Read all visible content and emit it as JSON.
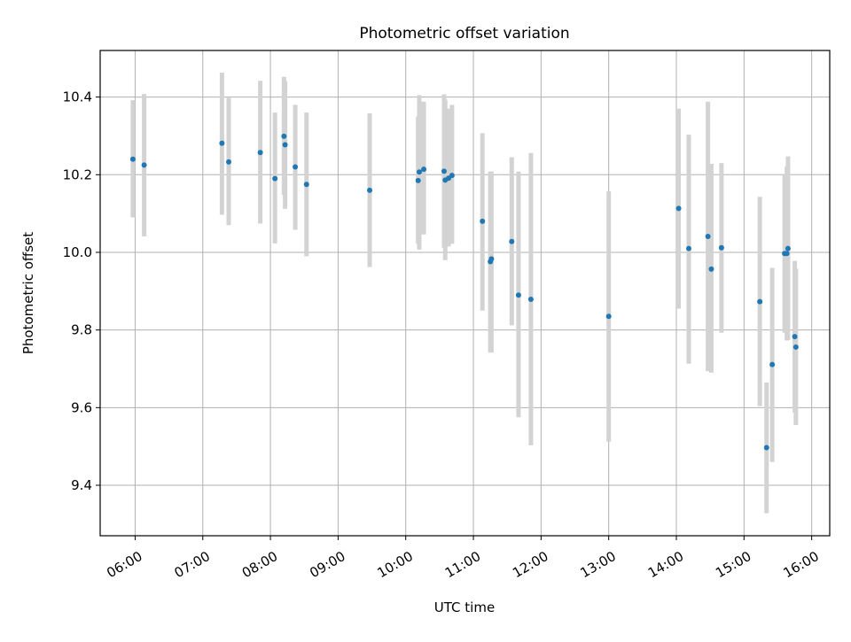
{
  "chart_data": {
    "type": "scatter",
    "title": "Photometric offset variation",
    "xlabel": "UTC time",
    "ylabel": "Photometric offset",
    "xlim": [
      "05:29",
      "16:16"
    ],
    "ylim": [
      9.27,
      10.52
    ],
    "xticks": [
      "06:00",
      "07:00",
      "08:00",
      "09:00",
      "10:00",
      "11:00",
      "12:00",
      "13:00",
      "14:00",
      "15:00",
      "16:00"
    ],
    "yticks": [
      9.4,
      9.6,
      9.8,
      10.0,
      10.2,
      10.4
    ],
    "ytick_labels": [
      "9.4",
      "9.6",
      "9.8",
      "10.0",
      "10.2",
      "10.4"
    ],
    "grid": true,
    "marker_color": "#1f77b4",
    "errorbar_color": "#d3d3d3",
    "points": [
      {
        "x": "05:58",
        "y": 10.24,
        "low": 10.09,
        "high": 10.392
      },
      {
        "x": "06:08",
        "y": 10.225,
        "low": 10.041,
        "high": 10.408
      },
      {
        "x": "07:17",
        "y": 10.281,
        "low": 10.097,
        "high": 10.463
      },
      {
        "x": "07:23",
        "y": 10.233,
        "low": 10.07,
        "high": 10.398
      },
      {
        "x": "07:51",
        "y": 10.257,
        "low": 10.074,
        "high": 10.442
      },
      {
        "x": "08:04",
        "y": 10.19,
        "low": 10.023,
        "high": 10.36
      },
      {
        "x": "08:12",
        "y": 10.299,
        "low": 10.148,
        "high": 10.452
      },
      {
        "x": "08:13",
        "y": 10.277,
        "low": 10.112,
        "high": 10.441
      },
      {
        "x": "08:22",
        "y": 10.22,
        "low": 10.058,
        "high": 10.38
      },
      {
        "x": "08:32",
        "y": 10.175,
        "low": 9.99,
        "high": 10.36
      },
      {
        "x": "09:28",
        "y": 10.16,
        "low": 9.962,
        "high": 10.358
      },
      {
        "x": "10:11",
        "y": 10.185,
        "low": 10.022,
        "high": 10.35
      },
      {
        "x": "10:12",
        "y": 10.207,
        "low": 10.007,
        "high": 10.405
      },
      {
        "x": "10:16",
        "y": 10.214,
        "low": 10.046,
        "high": 10.388
      },
      {
        "x": "10:34",
        "y": 10.209,
        "low": 10.012,
        "high": 10.407
      },
      {
        "x": "10:35",
        "y": 10.186,
        "low": 9.98,
        "high": 10.393
      },
      {
        "x": "10:38",
        "y": 10.191,
        "low": 10.015,
        "high": 10.37
      },
      {
        "x": "10:41",
        "y": 10.198,
        "low": 10.022,
        "high": 10.38
      },
      {
        "x": "11:08",
        "y": 10.08,
        "low": 9.85,
        "high": 10.307
      },
      {
        "x": "11:15",
        "y": 9.976,
        "low": 9.742,
        "high": 10.208
      },
      {
        "x": "11:16",
        "y": 9.983,
        "low": 9.742,
        "high": 10.208
      },
      {
        "x": "11:34",
        "y": 10.028,
        "low": 9.812,
        "high": 10.245
      },
      {
        "x": "11:40",
        "y": 9.89,
        "low": 9.575,
        "high": 10.208
      },
      {
        "x": "11:51",
        "y": 9.879,
        "low": 9.503,
        "high": 10.256
      },
      {
        "x": "13:00",
        "y": 9.835,
        "low": 9.512,
        "high": 10.157
      },
      {
        "x": "14:02",
        "y": 10.113,
        "low": 9.855,
        "high": 10.37
      },
      {
        "x": "14:11",
        "y": 10.01,
        "low": 9.713,
        "high": 10.303
      },
      {
        "x": "14:28",
        "y": 10.041,
        "low": 9.694,
        "high": 10.388
      },
      {
        "x": "14:31",
        "y": 9.957,
        "low": 9.69,
        "high": 10.228
      },
      {
        "x": "14:40",
        "y": 10.012,
        "low": 9.793,
        "high": 10.23
      },
      {
        "x": "15:14",
        "y": 9.873,
        "low": 9.604,
        "high": 10.143
      },
      {
        "x": "15:20",
        "y": 9.497,
        "low": 9.328,
        "high": 9.665
      },
      {
        "x": "15:25",
        "y": 9.711,
        "low": 9.46,
        "high": 9.96
      },
      {
        "x": "15:36",
        "y": 9.997,
        "low": 9.793,
        "high": 10.2
      },
      {
        "x": "15:38",
        "y": 9.997,
        "low": 9.773,
        "high": 10.221
      },
      {
        "x": "15:39",
        "y": 10.01,
        "low": 9.774,
        "high": 10.247
      },
      {
        "x": "15:45",
        "y": 9.783,
        "low": 9.587,
        "high": 9.978
      },
      {
        "x": "15:46",
        "y": 9.756,
        "low": 9.555,
        "high": 9.958
      }
    ]
  }
}
